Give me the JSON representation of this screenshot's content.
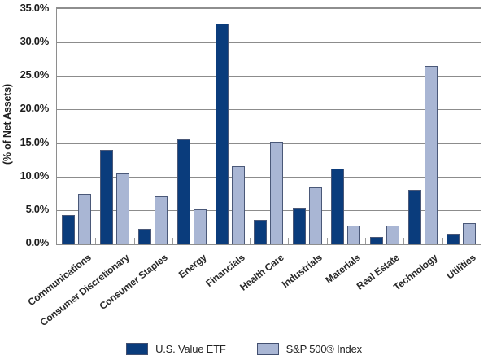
{
  "chart_data": {
    "type": "bar",
    "title": "",
    "ylabel": "(% of Net Assets)",
    "xlabel": "",
    "ylim": [
      0,
      35
    ],
    "y_tick_step": 5,
    "y_ticks": [
      "0.0%",
      "5.0%",
      "10.0%",
      "15.0%",
      "20.0%",
      "25.0%",
      "30.0%",
      "35.0%"
    ],
    "grid": "horizontal",
    "legend_position": "bottom",
    "categories": [
      "Communications",
      "Consumer Discretionary",
      "Consumer Staples",
      "Energy",
      "Financials",
      "Health Care",
      "Industrials",
      "Materials",
      "Real Estate",
      "Technology",
      "Utilities"
    ],
    "series": [
      {
        "name": "U.S. Value ETF",
        "color": "#0A3C7C",
        "values": [
          4.3,
          14.0,
          2.2,
          15.6,
          32.8,
          3.5,
          5.3,
          11.2,
          1.0,
          8.0,
          1.4
        ]
      },
      {
        "name": "S&P 500® Index",
        "color": "#A9B6D4",
        "values": [
          7.4,
          10.4,
          7.0,
          5.1,
          11.6,
          15.2,
          8.4,
          2.7,
          2.7,
          26.5,
          3.0
        ]
      }
    ],
    "colors": {
      "gridline": "#8C8C8C",
      "plot_border": "#8E8E8E",
      "axis_text": "#1D1D1D"
    }
  }
}
